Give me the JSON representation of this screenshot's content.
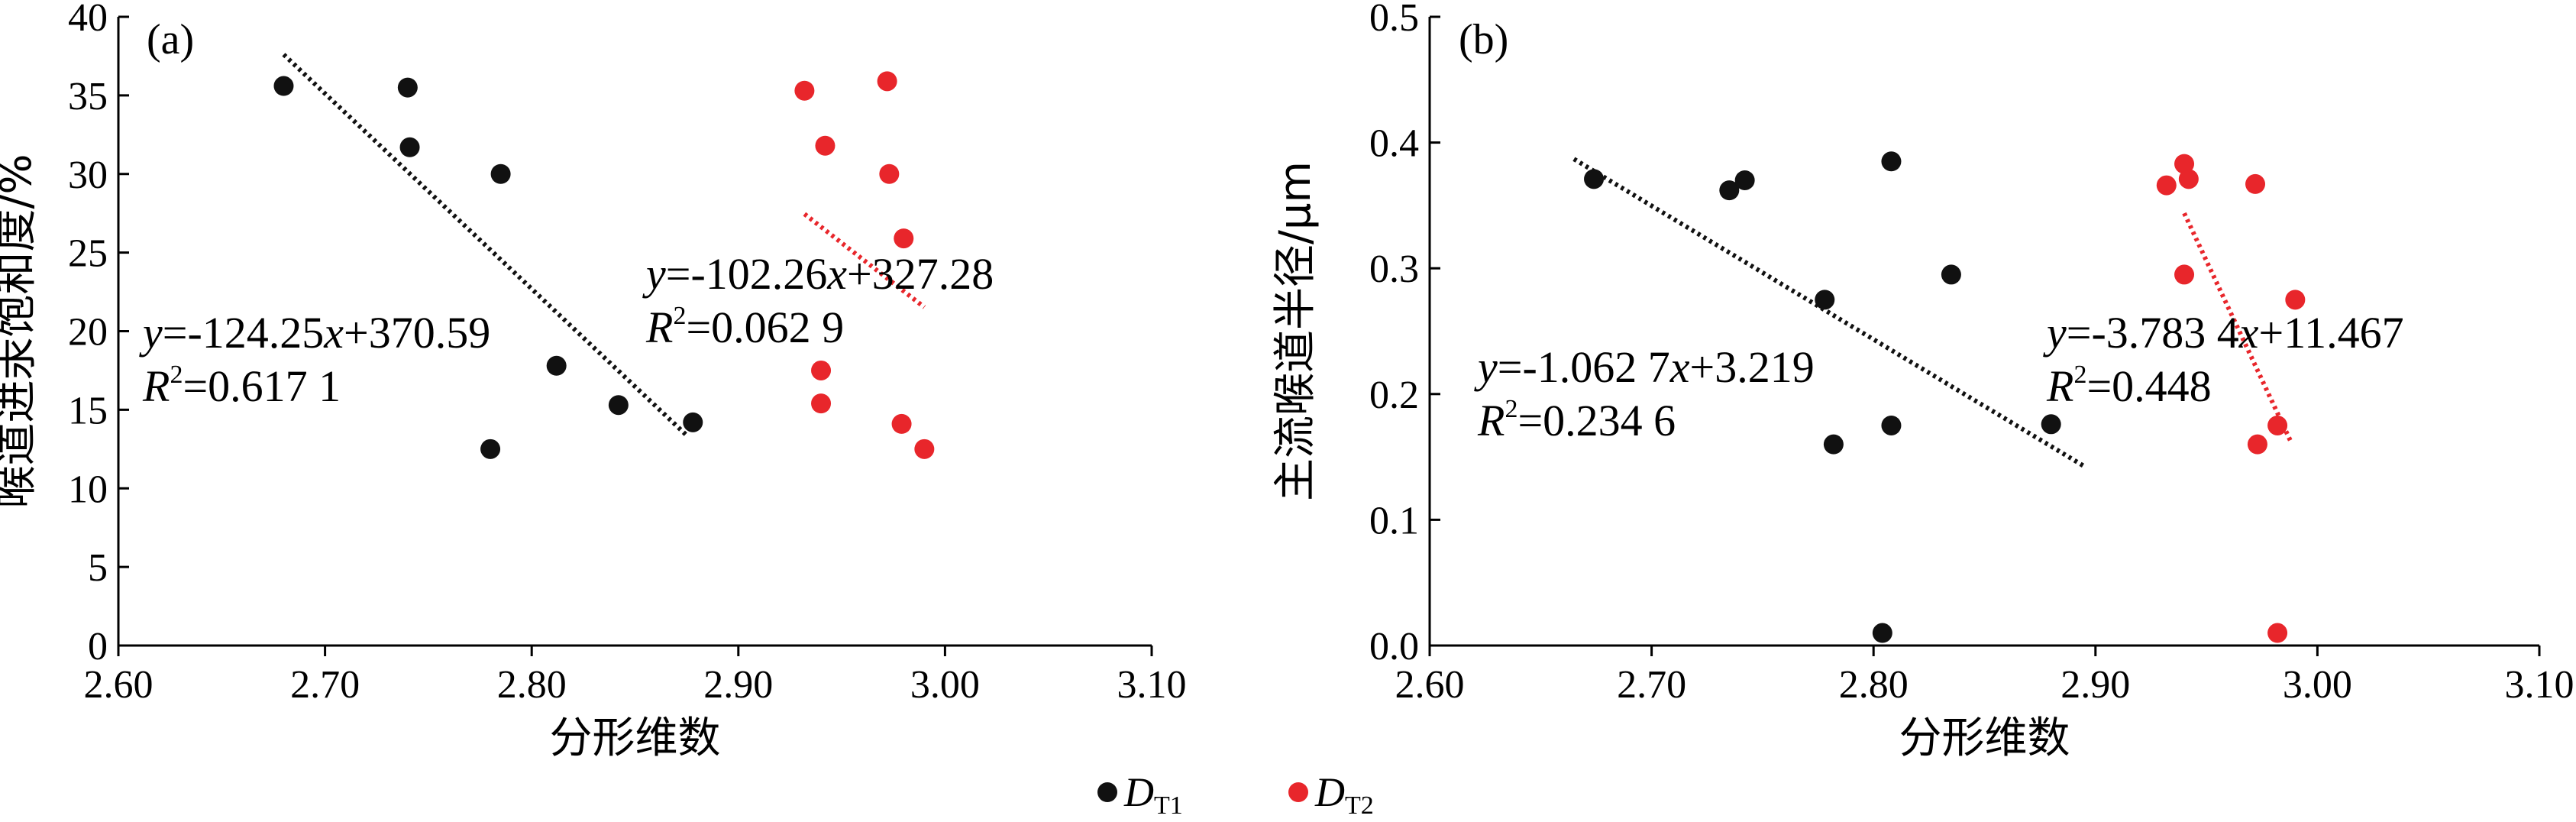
{
  "colors": {
    "D_T1": "#111111",
    "D_T2": "#e8262b"
  },
  "legend": [
    {
      "label": "D",
      "sub": "T1",
      "color": "#111111"
    },
    {
      "label": "D",
      "sub": "T2",
      "color": "#e8262b"
    }
  ],
  "chart_data": [
    {
      "type": "scatter",
      "panel_label": "(a)",
      "xlabel": "分形维数",
      "ylabel": "喉道进汞饱和度/%",
      "xlim": [
        2.6,
        3.1
      ],
      "ylim": [
        0,
        40
      ],
      "xticks": [
        "2.60",
        "2.70",
        "2.80",
        "2.90",
        "3.00",
        "3.10"
      ],
      "yticks": [
        "0",
        "5",
        "10",
        "15",
        "20",
        "25",
        "30",
        "35",
        "40"
      ],
      "series": [
        {
          "name": "D_T1",
          "x": [
            2.68,
            2.74,
            2.741,
            2.785,
            2.78,
            2.812,
            2.842,
            2.878
          ],
          "y": [
            35.6,
            35.5,
            31.7,
            30.0,
            12.5,
            17.8,
            15.3,
            14.2
          ],
          "fit": {
            "slope": -124.25,
            "intercept": 370.59,
            "x_range": [
              2.68,
              2.875
            ],
            "equation": "y=-124.25x+370.59",
            "r2": "R²=0.617 1"
          }
        },
        {
          "name": "D_T2",
          "x": [
            2.932,
            2.942,
            2.94,
            2.94,
            2.972,
            2.973,
            2.98,
            2.979,
            2.99
          ],
          "y": [
            35.3,
            31.8,
            17.5,
            15.4,
            35.9,
            30.0,
            25.9,
            14.1,
            12.5
          ],
          "fit": {
            "slope": -102.26,
            "intercept": 327.28,
            "x_range": [
              2.932,
              2.99
            ],
            "equation": "y=-102.26x+327.28",
            "r2": "R²=0.062 9"
          }
        }
      ]
    },
    {
      "type": "scatter",
      "panel_label": "(b)",
      "xlabel": "分形维数",
      "ylabel": "主流喉道半径/μm",
      "xlim": [
        2.6,
        3.1
      ],
      "ylim": [
        0,
        0.5
      ],
      "xticks": [
        "2.60",
        "2.70",
        "2.80",
        "2.90",
        "3.00",
        "3.10"
      ],
      "yticks": [
        "0.0",
        "0.1",
        "0.2",
        "0.3",
        "0.4",
        "0.5"
      ],
      "series": [
        {
          "name": "D_T1",
          "x": [
            2.674,
            2.735,
            2.742,
            2.808,
            2.778,
            2.835,
            2.782,
            2.808,
            2.88,
            2.804
          ],
          "y": [
            0.371,
            0.362,
            0.37,
            0.385,
            0.275,
            0.295,
            0.16,
            0.175,
            0.176,
            0.01
          ],
          "fit": {
            "slope": -1.0627,
            "intercept": 3.219,
            "x_range": [
              2.665,
              2.895
            ],
            "equation": "y=-1.062 7x+3.219",
            "r2": "R²=0.234 6"
          }
        },
        {
          "name": "D_T2",
          "x": [
            2.932,
            2.94,
            2.942,
            2.972,
            2.94,
            2.99,
            2.973,
            2.982,
            2.982
          ],
          "y": [
            0.366,
            0.383,
            0.371,
            0.367,
            0.295,
            0.275,
            0.16,
            0.175,
            0.01
          ],
          "fit": {
            "slope": -3.7834,
            "intercept": 11.467,
            "x_range": [
              2.94,
              2.988
            ],
            "equation": "y=-3.783 4x+11.467",
            "r2": "R²=0.448"
          }
        }
      ]
    }
  ]
}
